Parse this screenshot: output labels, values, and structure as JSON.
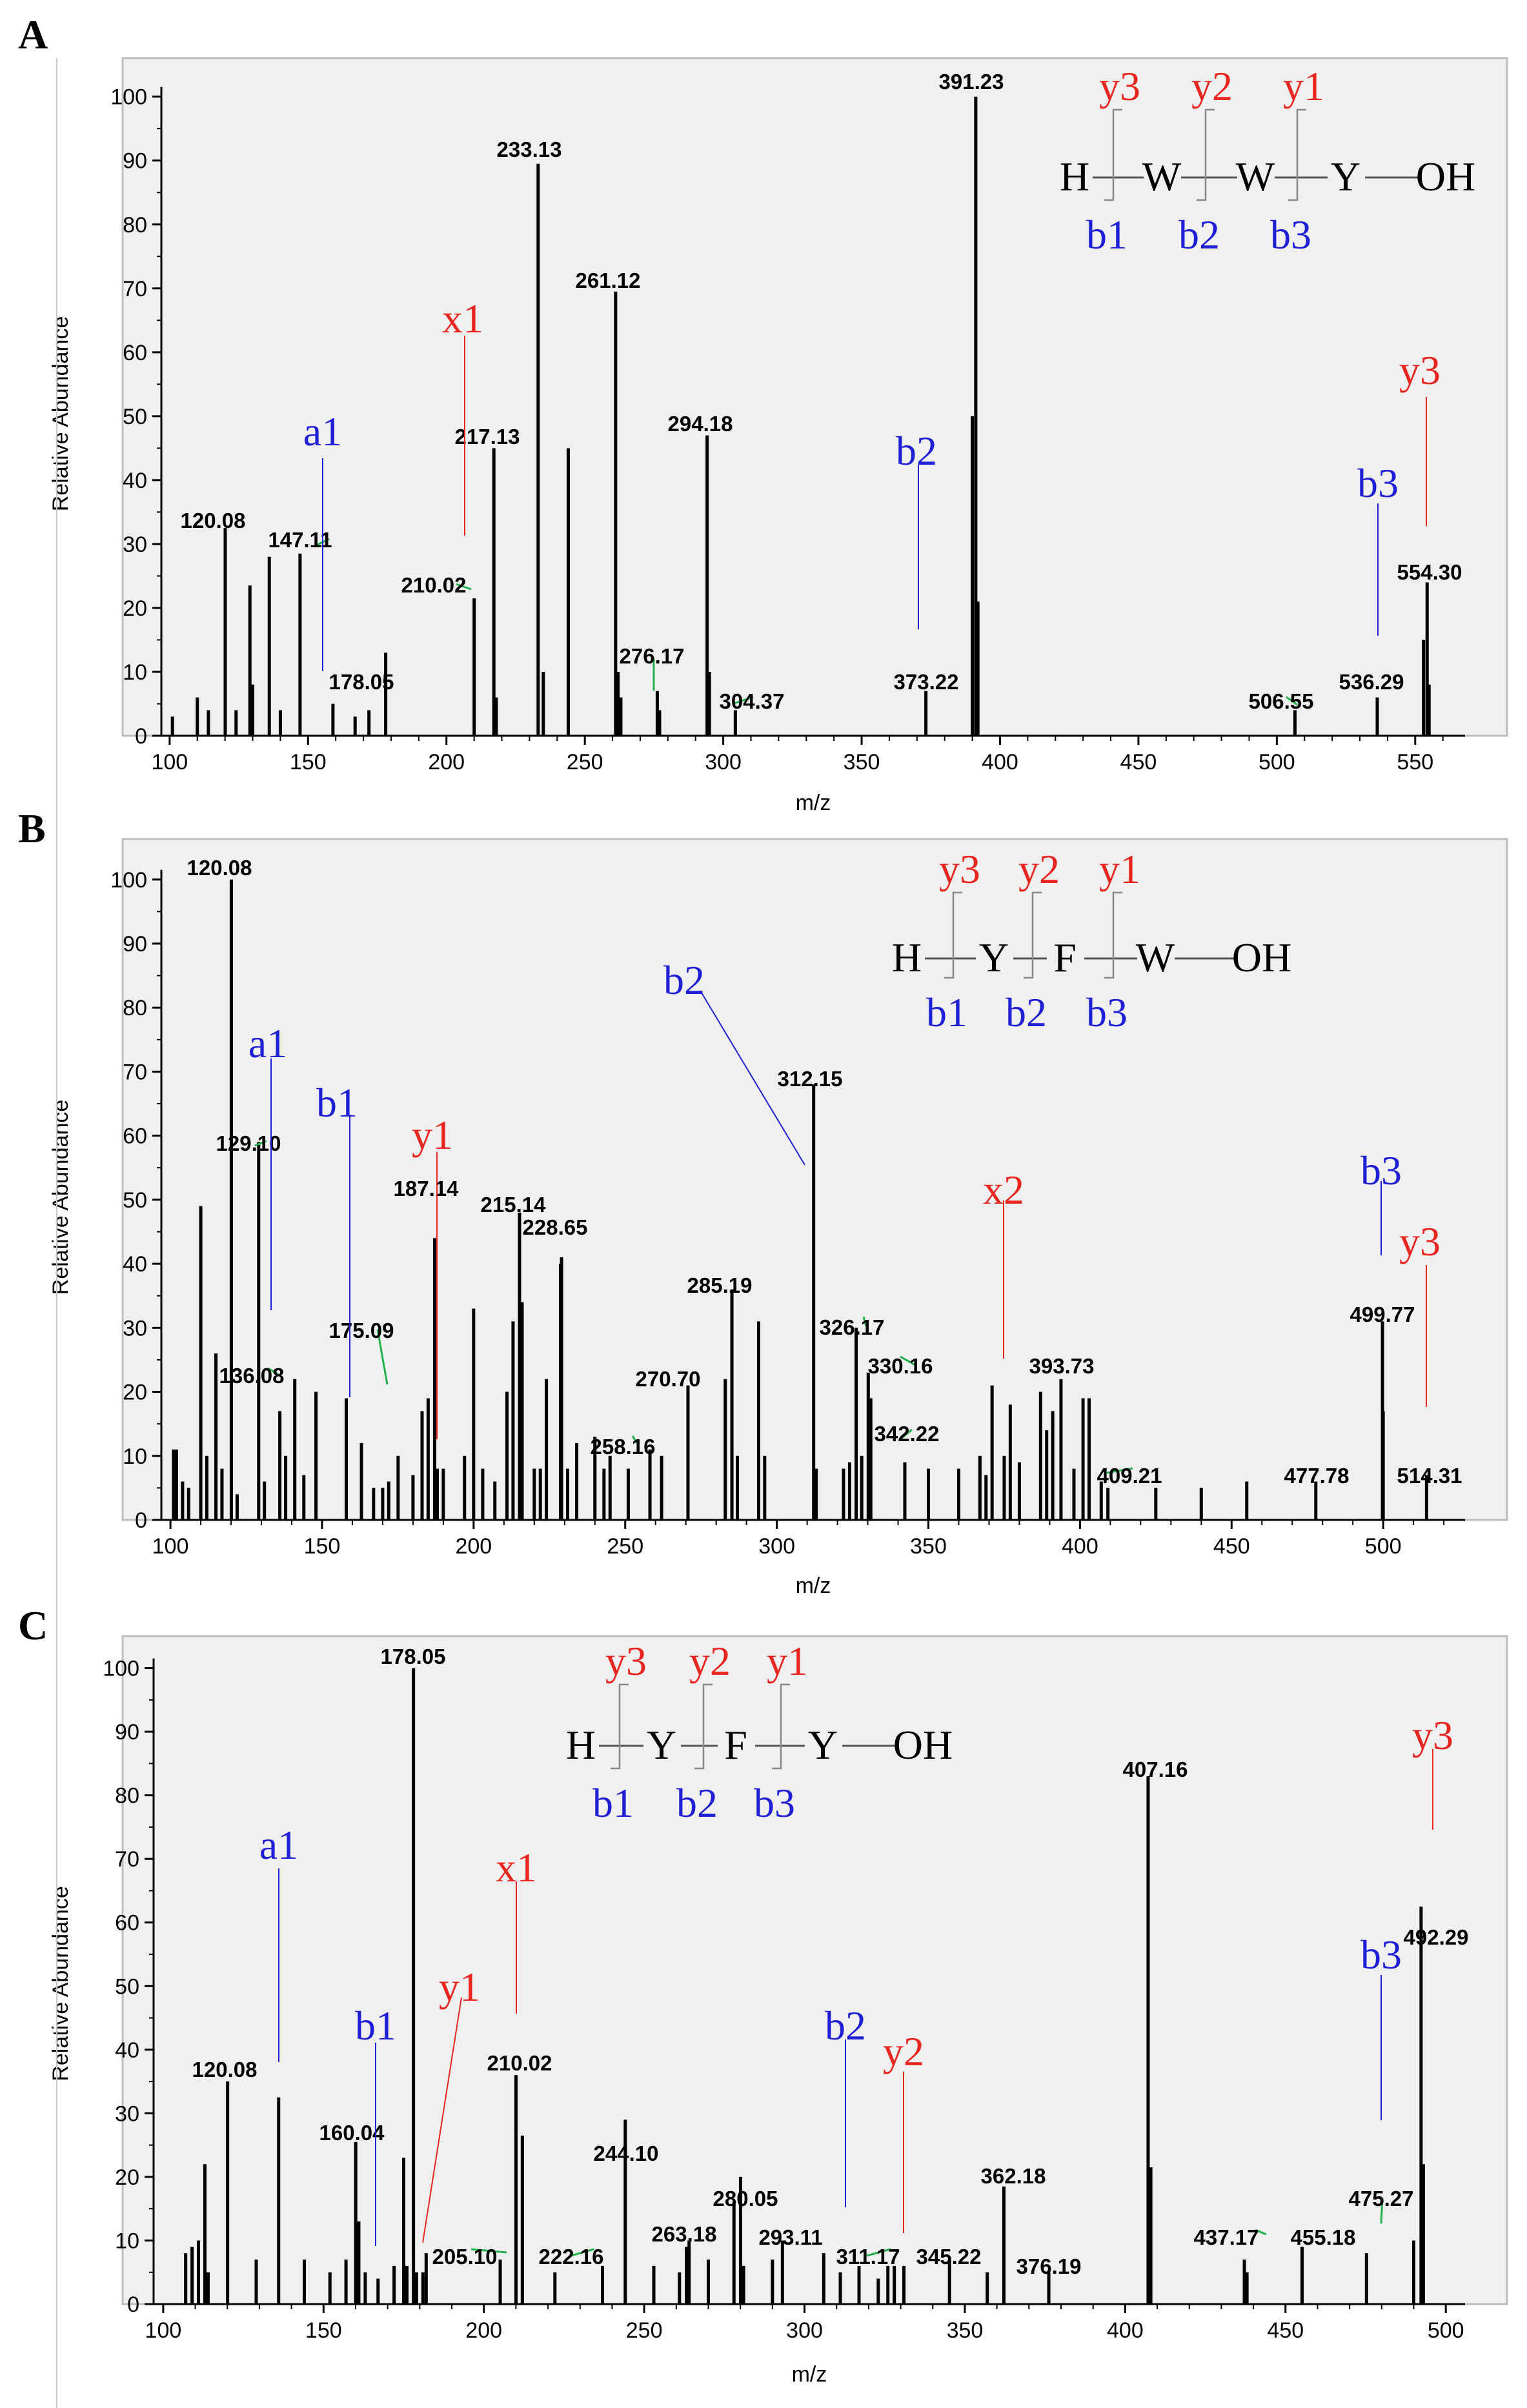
{
  "colors": {
    "red": "#e8261f",
    "blue": "#1f1fd6",
    "green": "#22b04b",
    "frame_bg": "#f0f0f0",
    "bar": "#000000"
  },
  "chart_data": [
    {
      "type": "bar",
      "panel": "A",
      "ylabel": "Relative Abundance",
      "xlabel": "m/z",
      "xlim": [
        97,
        568
      ],
      "ylim": [
        0,
        103
      ],
      "xticks": [
        100,
        150,
        200,
        250,
        300,
        350,
        400,
        450,
        500,
        550
      ],
      "yticks": [
        0,
        10,
        20,
        30,
        40,
        50,
        60,
        70,
        80,
        90,
        100
      ],
      "peaks": [
        [
          101,
          3
        ],
        [
          110,
          6
        ],
        [
          114,
          4
        ],
        [
          120.08,
          32.5
        ],
        [
          124,
          4
        ],
        [
          129,
          23.5
        ],
        [
          130,
          8
        ],
        [
          136,
          28
        ],
        [
          140,
          4
        ],
        [
          147.11,
          28.5
        ],
        [
          159,
          5
        ],
        [
          167,
          3
        ],
        [
          172,
          4
        ],
        [
          178.05,
          13
        ],
        [
          210.02,
          21.5
        ],
        [
          217.13,
          45
        ],
        [
          218,
          6
        ],
        [
          233.13,
          89.5
        ],
        [
          235,
          10
        ],
        [
          244,
          45
        ],
        [
          261.12,
          69.5
        ],
        [
          262,
          10
        ],
        [
          263,
          6
        ],
        [
          276.17,
          7
        ],
        [
          277,
          4
        ],
        [
          294.18,
          47
        ],
        [
          295,
          10
        ],
        [
          304.37,
          4
        ],
        [
          373.22,
          7
        ],
        [
          390,
          50
        ],
        [
          391.23,
          100
        ],
        [
          392,
          21
        ],
        [
          506.55,
          4
        ],
        [
          536.29,
          6
        ],
        [
          553,
          15
        ],
        [
          554.3,
          24
        ],
        [
          555,
          8
        ]
      ],
      "peak_labels": [
        {
          "x": 120.08,
          "text": "120.08"
        },
        {
          "x": 147.11,
          "text": "147.11"
        },
        {
          "x": 178.05,
          "text": "178.05"
        },
        {
          "x": 210.02,
          "text": "210.02"
        },
        {
          "x": 217.13,
          "text": "217.13"
        },
        {
          "x": 233.13,
          "text": "233.13"
        },
        {
          "x": 261.12,
          "text": "261.12"
        },
        {
          "x": 276.17,
          "text": "276.17"
        },
        {
          "x": 294.18,
          "text": "294.18"
        },
        {
          "x": 304.37,
          "text": "304.37"
        },
        {
          "x": 373.22,
          "text": "373.22"
        },
        {
          "x": 391.23,
          "text": "391.23"
        },
        {
          "x": 506.55,
          "text": "506.55"
        },
        {
          "x": 536.29,
          "text": "536.29"
        },
        {
          "x": 554.3,
          "text": "554.30"
        }
      ],
      "ion_annotations": [
        {
          "text": "a1",
          "color": "blue"
        },
        {
          "text": "x1",
          "color": "red"
        },
        {
          "text": "b2",
          "color": "blue"
        },
        {
          "text": "b3",
          "color": "blue"
        },
        {
          "text": "y3",
          "color": "red"
        }
      ],
      "structure": {
        "residues": [
          "H",
          "W",
          "W",
          "Y",
          "OH"
        ],
        "top_ions": [
          "y3",
          "y2",
          "y1"
        ],
        "bottom_ions": [
          "b1",
          "b2",
          "b3"
        ]
      }
    },
    {
      "type": "bar",
      "panel": "B",
      "ylabel": "Relative Abundance",
      "xlabel": "m/z",
      "xlim": [
        97,
        527
      ],
      "ylim": [
        0,
        103
      ],
      "xticks": [
        100,
        150,
        200,
        250,
        300,
        350,
        400,
        450,
        500
      ],
      "yticks": [
        0,
        10,
        20,
        30,
        40,
        50,
        60,
        70,
        80,
        90,
        100
      ],
      "peaks": [
        [
          101,
          11
        ],
        [
          102,
          11
        ],
        [
          104,
          6
        ],
        [
          106,
          5
        ],
        [
          110,
          49
        ],
        [
          112,
          10
        ],
        [
          115,
          26
        ],
        [
          117,
          8
        ],
        [
          120.08,
          100
        ],
        [
          122,
          4
        ],
        [
          129.1,
          59
        ],
        [
          131,
          6
        ],
        [
          136.08,
          17
        ],
        [
          138,
          10
        ],
        [
          141,
          22
        ],
        [
          144,
          7
        ],
        [
          148,
          20
        ],
        [
          158,
          19
        ],
        [
          163,
          12
        ],
        [
          167,
          5
        ],
        [
          170,
          5
        ],
        [
          172,
          6
        ],
        [
          175.09,
          10
        ],
        [
          180,
          7
        ],
        [
          183,
          17
        ],
        [
          185,
          19
        ],
        [
          187.14,
          44
        ],
        [
          188,
          8
        ],
        [
          190,
          8
        ],
        [
          197,
          10
        ],
        [
          200,
          33
        ],
        [
          203,
          8
        ],
        [
          207,
          6
        ],
        [
          211,
          20
        ],
        [
          213,
          31
        ],
        [
          215.14,
          48
        ],
        [
          216,
          34
        ],
        [
          220,
          8
        ],
        [
          222,
          8
        ],
        [
          224,
          22
        ],
        [
          228.65,
          40
        ],
        [
          229,
          41
        ],
        [
          231,
          8
        ],
        [
          234,
          12
        ],
        [
          240,
          13
        ],
        [
          243,
          8
        ],
        [
          245,
          10
        ],
        [
          251,
          8
        ],
        [
          258.16,
          11
        ],
        [
          262,
          10
        ],
        [
          270.7,
          21
        ],
        [
          283,
          22
        ],
        [
          285.19,
          36
        ],
        [
          287,
          10
        ],
        [
          294,
          31
        ],
        [
          296,
          10
        ],
        [
          312.15,
          68
        ],
        [
          313,
          8
        ],
        [
          322,
          8
        ],
        [
          324,
          9
        ],
        [
          326.17,
          30
        ],
        [
          328,
          10
        ],
        [
          330.16,
          23
        ],
        [
          331,
          19
        ],
        [
          342.22,
          9
        ],
        [
          350,
          8
        ],
        [
          360,
          8
        ],
        [
          367,
          10
        ],
        [
          369,
          7
        ],
        [
          371,
          21
        ],
        [
          375,
          10
        ],
        [
          377,
          18
        ],
        [
          380,
          9
        ],
        [
          387,
          20
        ],
        [
          389,
          14
        ],
        [
          391,
          17
        ],
        [
          393.73,
          22
        ],
        [
          398,
          8
        ],
        [
          401,
          19
        ],
        [
          403,
          19
        ],
        [
          407,
          6
        ],
        [
          409.21,
          5
        ],
        [
          425,
          5
        ],
        [
          440,
          5
        ],
        [
          455,
          6
        ],
        [
          477.78,
          6
        ],
        [
          499.77,
          31
        ],
        [
          500,
          17
        ],
        [
          514.31,
          7
        ]
      ],
      "peak_labels": [
        {
          "x": 120.08,
          "text": "120.08"
        },
        {
          "x": 129.1,
          "text": "129.10"
        },
        {
          "x": 136.08,
          "text": "136.08"
        },
        {
          "x": 175.09,
          "text": "175.09"
        },
        {
          "x": 187.14,
          "text": "187.14"
        },
        {
          "x": 215.14,
          "text": "215.14"
        },
        {
          "x": 228.65,
          "text": "228.65"
        },
        {
          "x": 258.16,
          "text": "258.16"
        },
        {
          "x": 270.7,
          "text": "270.70"
        },
        {
          "x": 285.19,
          "text": "285.19"
        },
        {
          "x": 312.15,
          "text": "312.15"
        },
        {
          "x": 326.17,
          "text": "326.17"
        },
        {
          "x": 330.16,
          "text": "330.16"
        },
        {
          "x": 342.22,
          "text": "342.22"
        },
        {
          "x": 393.73,
          "text": "393.73"
        },
        {
          "x": 409.21,
          "text": "409.21"
        },
        {
          "x": 477.78,
          "text": "477.78"
        },
        {
          "x": 499.77,
          "text": "499.77"
        },
        {
          "x": 514.31,
          "text": "514.31"
        }
      ],
      "ion_annotations": [
        {
          "text": "a1",
          "color": "blue"
        },
        {
          "text": "b1",
          "color": "blue"
        },
        {
          "text": "y1",
          "color": "red"
        },
        {
          "text": "b2",
          "color": "blue"
        },
        {
          "text": "x2",
          "color": "red"
        },
        {
          "text": "b3",
          "color": "blue"
        },
        {
          "text": "y3",
          "color": "red"
        }
      ],
      "structure": {
        "residues": [
          "H",
          "Y",
          "F",
          "W",
          "OH"
        ],
        "top_ions": [
          "y3",
          "y2",
          "y1"
        ],
        "bottom_ions": [
          "b1",
          "b2",
          "b3"
        ]
      }
    },
    {
      "type": "bar",
      "panel": "C",
      "ylabel": "Relative Abundance",
      "xlabel": "m/z",
      "xlim": [
        97,
        506
      ],
      "ylim": [
        0,
        103
      ],
      "xticks": [
        100,
        150,
        200,
        250,
        300,
        350,
        400,
        450,
        500
      ],
      "yticks": [
        0,
        10,
        20,
        30,
        40,
        50,
        60,
        70,
        80,
        90,
        100
      ],
      "peaks": [
        [
          107,
          8
        ],
        [
          109,
          9
        ],
        [
          111,
          10
        ],
        [
          113,
          22
        ],
        [
          114,
          5
        ],
        [
          120.08,
          35
        ],
        [
          129,
          7
        ],
        [
          136,
          32.5
        ],
        [
          144,
          7
        ],
        [
          152,
          5
        ],
        [
          157,
          7
        ],
        [
          160.04,
          25.5
        ],
        [
          161,
          13
        ],
        [
          163,
          5
        ],
        [
          167,
          4
        ],
        [
          172,
          6
        ],
        [
          175,
          23
        ],
        [
          176,
          6
        ],
        [
          178.05,
          100
        ],
        [
          179,
          5
        ],
        [
          181,
          5
        ],
        [
          182,
          8
        ],
        [
          205.1,
          7
        ],
        [
          210.02,
          36
        ],
        [
          212,
          26.5
        ],
        [
          222.16,
          5
        ],
        [
          237,
          6
        ],
        [
          244.1,
          29
        ],
        [
          253,
          6
        ],
        [
          261,
          5
        ],
        [
          263.18,
          9
        ],
        [
          264,
          10
        ],
        [
          270,
          7
        ],
        [
          278,
          16
        ],
        [
          280.05,
          20
        ],
        [
          281,
          6
        ],
        [
          290,
          7
        ],
        [
          293.11,
          10
        ],
        [
          306,
          8
        ],
        [
          311.17,
          5
        ],
        [
          317,
          6
        ],
        [
          323,
          4
        ],
        [
          326,
          6
        ],
        [
          328,
          6
        ],
        [
          331,
          6
        ],
        [
          345.22,
          7
        ],
        [
          357,
          5
        ],
        [
          362.18,
          18.5
        ],
        [
          376.19,
          5
        ],
        [
          407.16,
          83
        ],
        [
          408,
          21.5
        ],
        [
          437.17,
          7
        ],
        [
          438,
          5
        ],
        [
          455.18,
          9
        ],
        [
          475.27,
          8
        ],
        [
          490,
          10
        ],
        [
          492.29,
          62.5
        ],
        [
          493,
          22
        ]
      ],
      "peak_labels": [
        {
          "x": 120.08,
          "text": "120.08"
        },
        {
          "x": 160.04,
          "text": "160.04"
        },
        {
          "x": 178.05,
          "text": "178.05"
        },
        {
          "x": 205.1,
          "text": "205.10"
        },
        {
          "x": 210.02,
          "text": "210.02"
        },
        {
          "x": 222.16,
          "text": "222.16"
        },
        {
          "x": 244.1,
          "text": "244.10"
        },
        {
          "x": 263.18,
          "text": "263.18"
        },
        {
          "x": 280.05,
          "text": "280.05"
        },
        {
          "x": 293.11,
          "text": "293.11"
        },
        {
          "x": 311.17,
          "text": "311.17"
        },
        {
          "x": 345.22,
          "text": "345.22"
        },
        {
          "x": 362.18,
          "text": "362.18"
        },
        {
          "x": 376.19,
          "text": "376.19"
        },
        {
          "x": 407.16,
          "text": "407.16"
        },
        {
          "x": 437.17,
          "text": "437.17"
        },
        {
          "x": 455.18,
          "text": "455.18"
        },
        {
          "x": 475.27,
          "text": "475.27"
        },
        {
          "x": 492.29,
          "text": "492.29"
        }
      ],
      "ion_annotations": [
        {
          "text": "a1",
          "color": "blue"
        },
        {
          "text": "b1",
          "color": "blue"
        },
        {
          "text": "y1",
          "color": "red"
        },
        {
          "text": "x1",
          "color": "red"
        },
        {
          "text": "b2",
          "color": "blue"
        },
        {
          "text": "y2",
          "color": "red"
        },
        {
          "text": "b3",
          "color": "blue"
        },
        {
          "text": "y3",
          "color": "red"
        }
      ],
      "structure": {
        "residues": [
          "H",
          "Y",
          "F",
          "Y",
          "OH"
        ],
        "top_ions": [
          "y3",
          "y2",
          "y1"
        ],
        "bottom_ions": [
          "b1",
          "b2",
          "b3"
        ]
      }
    }
  ]
}
